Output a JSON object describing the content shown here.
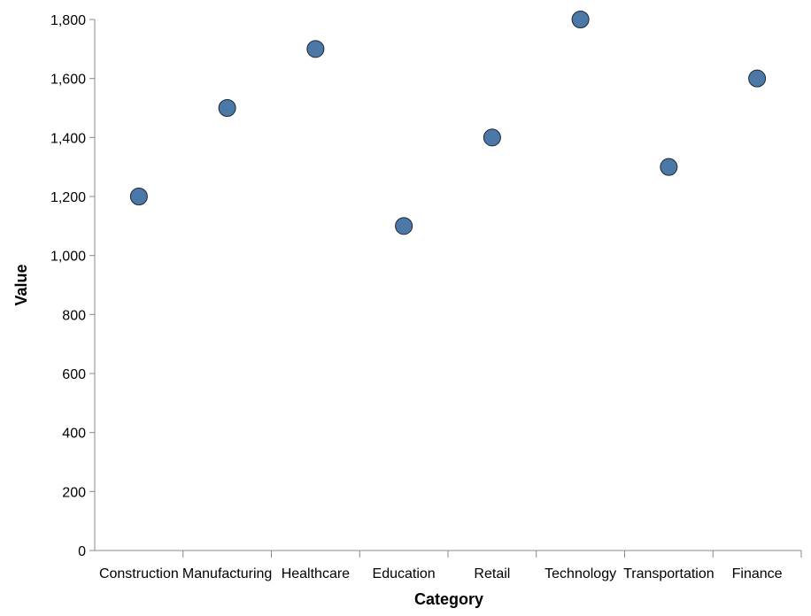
{
  "chart_data": {
    "type": "scatter",
    "title": "",
    "xlabel": "Category",
    "ylabel": "Value",
    "categories": [
      "Construction",
      "Manufacturing",
      "Healthcare",
      "Education",
      "Retail",
      "Technology",
      "Transportation",
      "Finance"
    ],
    "x": [
      "Construction",
      "Manufacturing",
      "Healthcare",
      "Education",
      "Retail",
      "Technology",
      "Transportation",
      "Finance"
    ],
    "values": [
      1200,
      1500,
      1700,
      1100,
      1400,
      1800,
      1300,
      1600
    ],
    "ylim": [
      0,
      1800
    ],
    "yticks": [
      0,
      200,
      400,
      600,
      800,
      1000,
      1200,
      1400,
      1600,
      1800
    ],
    "ytick_labels": [
      "0",
      "200",
      "400",
      "600",
      "800",
      "1,000",
      "1,200",
      "1,400",
      "1,600",
      "1,800"
    ],
    "grid": false,
    "legend": "none",
    "colors": {
      "point_fill": "#4c78a8",
      "point_stroke": "#1b2733",
      "axis": "#888888"
    }
  }
}
